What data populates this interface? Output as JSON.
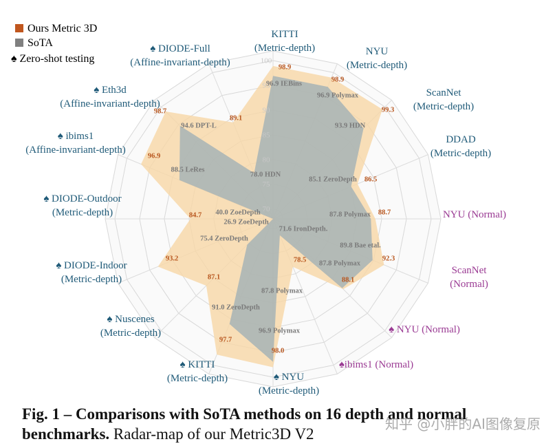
{
  "chart_data": {
    "type": "radar",
    "categories": [
      "KITTI\n(Metric-depth)",
      "NYU\n(Metric-depth)",
      "ScanNet\n(Metric-depth)",
      "DDAD\n(Metric-depth)",
      "NYU (Normal)",
      "ScanNet (Normal)",
      "♠ NYU (Normal)",
      "♠ibims1 (Normal)",
      "♠ NYU\n(Metric-depth)",
      "♠ KITTI\n(Metric-depth)",
      "♠ Nuscenes\n(Metric-depth)",
      "♠ DIODE-Indoor\n(Metric-depth)",
      "♠ DIODE-Outdoor\n(Metric-depth)",
      "♠ ibims1\n(Affine-invariant-depth)",
      "♠ Eth3d\n(Affine-invariant-depth)",
      "♠ DIODE-Full\n(Affine-invariant-depth)"
    ],
    "label_colors": [
      "#1f5a78",
      "#1f5a78",
      "#1f5a78",
      "#1f5a78",
      "#9a3a93",
      "#9a3a93",
      "#9a3a93",
      "#9a3a93",
      "#1f5a78",
      "#1f5a78",
      "#1f5a78",
      "#1f5a78",
      "#1f5a78",
      "#1f5a78",
      "#1f5a78",
      "#1f5a78"
    ],
    "series": [
      {
        "name": "Ours Metric 3D",
        "color": "#c0561e",
        "fill": "#f8d7a6",
        "values": [
          98.9,
          98.9,
          99.3,
          86.5,
          88.7,
          92.3,
          88.1,
          78.5,
          98.0,
          97.7,
          87.1,
          93.2,
          84.7,
          96.9,
          98.7,
          89.1
        ],
        "value_labels": [
          "98.9",
          "98.9",
          "99.3",
          "86.5",
          "88.7",
          "92.3",
          "88.1",
          "78.5",
          "98.0",
          "97.7",
          "87.1",
          "93.2",
          "84.7",
          "96.9",
          "98.7",
          "89.1"
        ]
      },
      {
        "name": "SoTA",
        "color": "#808080",
        "fill": "#9cadb6",
        "values": [
          96.9,
          96.9,
          93.9,
          85.1,
          87.8,
          89.8,
          87.8,
          71.6,
          96.9,
          91.0,
          75.4,
          26.9,
          40.0,
          88.5,
          94.6,
          78.0
        ],
        "value_labels": [
          "96.9 IEBins",
          "96.9 Polymax",
          "93.9 HDN",
          "85.1 ZeroDepth",
          "87.8 Polymax",
          "89.8 Bae etal.",
          "87.8 Polymax",
          "71.6 IronDepth.",
          "96.9 Polymax",
          "91.0 ZeroDepth",
          "75.4 ZeroDepth",
          "26.9 ZoeDepth",
          "40.0 ZoeDepth",
          "88.5 LeRes",
          "94.6 DPT-L",
          "78.0 HDN"
        ]
      }
    ],
    "annotations": [
      {
        "text": "87.8 Polymax"
      }
    ],
    "legend_note": "♠ Zero-shot testing",
    "rlim": [
      68,
      100
    ],
    "rticks": [
      70,
      75,
      80,
      85,
      90,
      95,
      100
    ],
    "grid": true
  },
  "caption": {
    "bold": "Fig. 1 – Comparisons with SoTA methods on 16 depth and normal benchmarks.",
    "text": "Radar-map of our Metric3D V2"
  },
  "watermark": "知乎 @小胖的AI图像复原"
}
